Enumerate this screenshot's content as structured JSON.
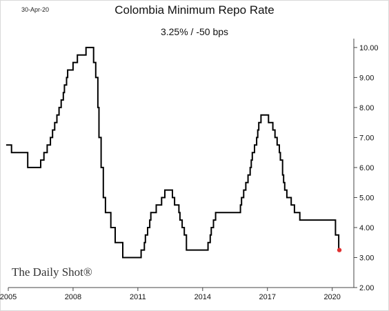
{
  "header": {
    "date": "30-Apr-20",
    "title": "Colombia Minimum Repo Rate",
    "subtitle": "3.25%  /  -50 bps"
  },
  "watermark": "The Daily Shot®",
  "colors": {
    "line": "#000000",
    "marker": "#e03030",
    "axis": "#444444"
  },
  "chart_data": {
    "type": "line",
    "title": "Colombia Minimum Repo Rate",
    "subtitle": "3.25%  /  -50 bps",
    "xlabel": "",
    "ylabel": "",
    "xlim": [
      2005.0,
      2021.0
    ],
    "ylim": [
      2.0,
      10.25
    ],
    "y_axis_position": "right",
    "grid": false,
    "x_ticks": [
      {
        "value": 2005,
        "label": "2005"
      },
      {
        "value": 2008,
        "label": "2008"
      },
      {
        "value": 2011,
        "label": "2011"
      },
      {
        "value": 2014,
        "label": "2014"
      },
      {
        "value": 2017,
        "label": "2017"
      },
      {
        "value": 2020,
        "label": "2020"
      }
    ],
    "y_ticks": [
      {
        "value": 2,
        "label": "2.00"
      },
      {
        "value": 3,
        "label": "3.00"
      },
      {
        "value": 4,
        "label": "4.00"
      },
      {
        "value": 5,
        "label": "5.00"
      },
      {
        "value": 6,
        "label": "6.00"
      },
      {
        "value": 7,
        "label": "7.00"
      },
      {
        "value": 8,
        "label": "8.00"
      },
      {
        "value": 9,
        "label": "9.00"
      },
      {
        "value": 10,
        "label": "10.00"
      }
    ],
    "series": [
      {
        "step": true,
        "points": [
          [
            2004.9,
            6.75
          ],
          [
            2005.15,
            6.5
          ],
          [
            2005.9,
            6.0
          ],
          [
            2006.5,
            6.25
          ],
          [
            2006.65,
            6.5
          ],
          [
            2006.8,
            6.75
          ],
          [
            2006.95,
            7.0
          ],
          [
            2007.05,
            7.25
          ],
          [
            2007.15,
            7.5
          ],
          [
            2007.25,
            7.75
          ],
          [
            2007.35,
            8.0
          ],
          [
            2007.45,
            8.25
          ],
          [
            2007.55,
            8.5
          ],
          [
            2007.6,
            8.75
          ],
          [
            2007.7,
            9.0
          ],
          [
            2007.75,
            9.25
          ],
          [
            2008.0,
            9.5
          ],
          [
            2008.2,
            9.75
          ],
          [
            2008.6,
            10.0
          ],
          [
            2008.95,
            9.5
          ],
          [
            2009.05,
            9.0
          ],
          [
            2009.15,
            8.0
          ],
          [
            2009.2,
            7.0
          ],
          [
            2009.3,
            6.0
          ],
          [
            2009.4,
            5.0
          ],
          [
            2009.5,
            4.5
          ],
          [
            2009.75,
            4.0
          ],
          [
            2009.95,
            3.5
          ],
          [
            2010.3,
            3.0
          ],
          [
            2011.15,
            3.25
          ],
          [
            2011.3,
            3.5
          ],
          [
            2011.35,
            3.75
          ],
          [
            2011.45,
            4.0
          ],
          [
            2011.55,
            4.25
          ],
          [
            2011.6,
            4.5
          ],
          [
            2011.85,
            4.75
          ],
          [
            2012.1,
            5.0
          ],
          [
            2012.25,
            5.25
          ],
          [
            2012.6,
            5.0
          ],
          [
            2012.7,
            4.75
          ],
          [
            2012.9,
            4.5
          ],
          [
            2012.95,
            4.25
          ],
          [
            2013.05,
            4.0
          ],
          [
            2013.15,
            3.75
          ],
          [
            2013.25,
            3.25
          ],
          [
            2014.25,
            3.5
          ],
          [
            2014.35,
            3.75
          ],
          [
            2014.4,
            4.0
          ],
          [
            2014.5,
            4.25
          ],
          [
            2014.6,
            4.5
          ],
          [
            2015.75,
            4.75
          ],
          [
            2015.8,
            5.0
          ],
          [
            2015.9,
            5.25
          ],
          [
            2016.0,
            5.5
          ],
          [
            2016.1,
            5.75
          ],
          [
            2016.2,
            6.0
          ],
          [
            2016.25,
            6.25
          ],
          [
            2016.3,
            6.5
          ],
          [
            2016.4,
            6.75
          ],
          [
            2016.5,
            7.0
          ],
          [
            2016.55,
            7.25
          ],
          [
            2016.6,
            7.5
          ],
          [
            2016.7,
            7.75
          ],
          [
            2017.05,
            7.5
          ],
          [
            2017.25,
            7.25
          ],
          [
            2017.35,
            7.0
          ],
          [
            2017.45,
            6.75
          ],
          [
            2017.55,
            6.5
          ],
          [
            2017.6,
            6.25
          ],
          [
            2017.7,
            5.75
          ],
          [
            2017.75,
            5.5
          ],
          [
            2017.8,
            5.25
          ],
          [
            2017.9,
            5.0
          ],
          [
            2018.1,
            4.75
          ],
          [
            2018.25,
            4.5
          ],
          [
            2018.5,
            4.25
          ],
          [
            2020.15,
            3.75
          ],
          [
            2020.3,
            3.25
          ],
          [
            2020.33,
            3.25
          ]
        ]
      }
    ],
    "last_point": {
      "x": 2020.33,
      "y": 3.25
    }
  }
}
